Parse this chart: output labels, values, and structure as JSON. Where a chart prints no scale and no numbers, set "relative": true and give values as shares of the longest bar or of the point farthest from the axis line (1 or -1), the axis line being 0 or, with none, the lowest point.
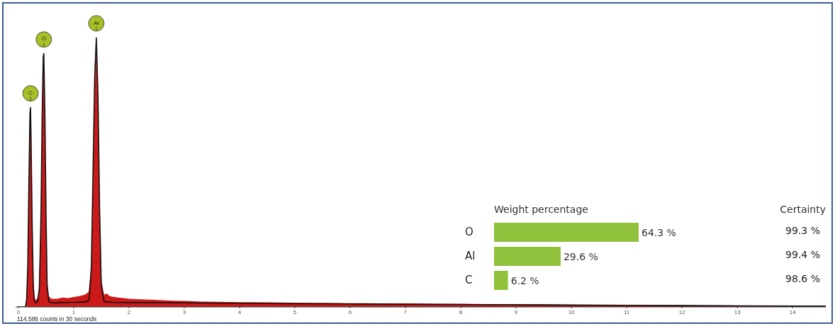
{
  "chart_data": [
    {
      "type": "area",
      "relative": true,
      "xlim": [
        -0.05,
        14.6
      ],
      "xticks": [
        0,
        1,
        2,
        3,
        4,
        5,
        6,
        7,
        8,
        9,
        10,
        11,
        12,
        13,
        14
      ],
      "series": [
        {
          "type": "area",
          "color": "#cc1a1a",
          "x": [
            0,
            0.13,
            0.15,
            0.17,
            0.19,
            0.21,
            0.22,
            0.23,
            0.25,
            0.27,
            0.29,
            0.31,
            0.34,
            0.37,
            0.4,
            0.42,
            0.44,
            0.46,
            0.48,
            0.5,
            0.52,
            0.55,
            0.6,
            0.7,
            0.8,
            0.9,
            1.0,
            1.1,
            1.2,
            1.27,
            1.32,
            1.35,
            1.38,
            1.41,
            1.44,
            1.47,
            1.5,
            1.55,
            1.6,
            1.65,
            1.7,
            1.8,
            1.9,
            2.0,
            2.2,
            2.4,
            2.6,
            2.8,
            3.0,
            3.3,
            3.6,
            4.0,
            4.5,
            5.0,
            5.5,
            6.0,
            6.5,
            7.0,
            7.5,
            8.0,
            8.5,
            9.0,
            9.5,
            10.0,
            10.5,
            11.0,
            11.5,
            12.0,
            12.5,
            13.0,
            13.5,
            14.0,
            14.6
          ],
          "values": [
            0,
            0,
            0.03,
            0.15,
            0.45,
            0.7,
            0.74,
            0.6,
            0.3,
            0.1,
            0.04,
            0.025,
            0.03,
            0.06,
            0.25,
            0.55,
            0.85,
            0.92,
            0.7,
            0.35,
            0.1,
            0.04,
            0.03,
            0.03,
            0.035,
            0.033,
            0.037,
            0.04,
            0.045,
            0.055,
            0.15,
            0.45,
            0.8,
            0.97,
            0.75,
            0.35,
            0.1,
            0.045,
            0.05,
            0.04,
            0.038,
            0.035,
            0.033,
            0.03,
            0.028,
            0.027,
            0.025,
            0.023,
            0.022,
            0.02,
            0.019,
            0.018,
            0.017,
            0.016,
            0.015,
            0.014,
            0.013,
            0.013,
            0.012,
            0.011,
            0.01,
            0.01,
            0.009,
            0.008,
            0.008,
            0.007,
            0.006,
            0.006,
            0.005,
            0.005,
            0.004,
            0.004,
            0.003
          ]
        },
        {
          "type": "line",
          "color": "#111111",
          "x": [
            0,
            0.13,
            0.15,
            0.17,
            0.19,
            0.21,
            0.22,
            0.23,
            0.25,
            0.27,
            0.29,
            0.32,
            0.35,
            0.38,
            0.41,
            0.43,
            0.45,
            0.46,
            0.48,
            0.5,
            0.52,
            0.55,
            0.6,
            0.8,
            1.0,
            1.2,
            1.28,
            1.32,
            1.35,
            1.38,
            1.41,
            1.44,
            1.47,
            1.5,
            1.55,
            1.7,
            2.0,
            2.5,
            3.0,
            4.0,
            5.0,
            6.0,
            7.0,
            8.0,
            9.0,
            10.0,
            11.0,
            12.0,
            13.0,
            14.0,
            14.6
          ],
          "values": [
            0,
            0,
            0.03,
            0.15,
            0.45,
            0.72,
            0.74,
            0.62,
            0.3,
            0.08,
            0.02,
            0.015,
            0.02,
            0.07,
            0.35,
            0.7,
            0.93,
            0.94,
            0.72,
            0.35,
            0.08,
            0.02,
            0.015,
            0.016,
            0.017,
            0.018,
            0.025,
            0.15,
            0.5,
            0.85,
            1.0,
            0.78,
            0.35,
            0.08,
            0.02,
            0.017,
            0.016,
            0.016,
            0.015,
            0.013,
            0.012,
            0.011,
            0.01,
            0.009,
            0.008,
            0.007,
            0.006,
            0.005,
            0.004,
            0.003,
            0.003
          ]
        }
      ],
      "annotations": [
        {
          "text": "C",
          "x": 0.22,
          "y": 0.74
        },
        {
          "text": "O",
          "x": 0.46,
          "y": 0.94
        },
        {
          "text": "Al",
          "x": 1.41,
          "y": 1.0
        },
        "114,586 counts in 30 seconds"
      ]
    },
    {
      "type": "bar",
      "orientation": "horizontal",
      "title": "Weight percentage",
      "categories": [
        "O",
        "Al",
        "C"
      ],
      "values": [
        64.3,
        29.6,
        6.2
      ],
      "color": "#8fc23a",
      "tick_labels": "y",
      "value_labels": [
        "64.3 %",
        "29.6 %",
        "6.2 %"
      ]
    },
    {
      "type": "other",
      "title": "Certainty",
      "annotations": [
        "99.3 %",
        "99.4 %",
        "98.6 %"
      ]
    }
  ]
}
